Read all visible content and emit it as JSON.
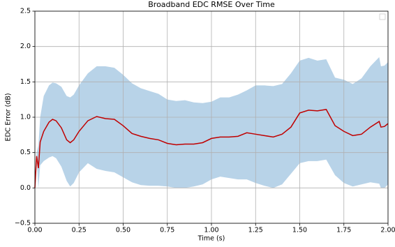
{
  "chart_data": {
    "type": "line",
    "title": "Broadband EDC RMSE Over Time",
    "x_label": "Time (s)",
    "y_label": "EDC Error  (dB)",
    "x": [
      0,
      0.01,
      0.02,
      0.03,
      0.05,
      0.08,
      0.1,
      0.12,
      0.15,
      0.18,
      0.2,
      0.22,
      0.25,
      0.3,
      0.35,
      0.4,
      0.45,
      0.5,
      0.55,
      0.6,
      0.65,
      0.7,
      0.75,
      0.8,
      0.85,
      0.9,
      0.95,
      1.0,
      1.05,
      1.1,
      1.15,
      1.2,
      1.25,
      1.3,
      1.35,
      1.4,
      1.45,
      1.5,
      1.55,
      1.6,
      1.65,
      1.7,
      1.75,
      1.8,
      1.85,
      1.9,
      1.95,
      1.96,
      1.98,
      2.0
    ],
    "series": [
      {
        "color": "#c00000",
        "values": [
          0,
          0.45,
          0.28,
          0.65,
          0.8,
          0.93,
          0.97,
          0.95,
          0.85,
          0.68,
          0.64,
          0.68,
          0.8,
          0.95,
          1.01,
          0.98,
          0.97,
          0.88,
          0.77,
          0.73,
          0.7,
          0.68,
          0.63,
          0.61,
          0.62,
          0.62,
          0.64,
          0.7,
          0.72,
          0.72,
          0.73,
          0.78,
          0.76,
          0.74,
          0.72,
          0.76,
          0.86,
          1.06,
          1.1,
          1.09,
          1.11,
          0.88,
          0.8,
          0.74,
          0.76,
          0.86,
          0.94,
          0.86,
          0.87,
          0.91
        ],
        "band_color": "#b8d3e8",
        "upper": [
          0,
          0.5,
          0.6,
          1.0,
          1.3,
          1.45,
          1.49,
          1.48,
          1.43,
          1.3,
          1.28,
          1.32,
          1.45,
          1.62,
          1.72,
          1.72,
          1.7,
          1.6,
          1.48,
          1.41,
          1.37,
          1.33,
          1.25,
          1.23,
          1.24,
          1.21,
          1.2,
          1.22,
          1.28,
          1.28,
          1.32,
          1.38,
          1.45,
          1.45,
          1.44,
          1.47,
          1.62,
          1.8,
          1.84,
          1.8,
          1.82,
          1.56,
          1.53,
          1.47,
          1.55,
          1.72,
          1.85,
          1.72,
          1.73,
          1.78
        ],
        "lower": [
          0,
          0.4,
          0,
          0.32,
          0.38,
          0.43,
          0.45,
          0.42,
          0.3,
          0.1,
          0.02,
          0.07,
          0.22,
          0.35,
          0.27,
          0.24,
          0.22,
          0.15,
          0.08,
          0.04,
          0.03,
          0.03,
          0.02,
          0,
          0,
          0.02,
          0.05,
          0.12,
          0.16,
          0.14,
          0.12,
          0.12,
          0.07,
          0.03,
          0,
          0.05,
          0.2,
          0.35,
          0.38,
          0.38,
          0.4,
          0.18,
          0.07,
          0.02,
          0.05,
          0.08,
          0.06,
          0,
          0,
          0.05
        ]
      }
    ],
    "xlim": [
      0,
      2.0
    ],
    "ylim": [
      -0.5,
      2.5
    ],
    "xticks": [
      {
        "value": 0,
        "label": "0.00"
      },
      {
        "value": 0.25,
        "label": "0.25"
      },
      {
        "value": 0.5,
        "label": "0.50"
      },
      {
        "value": 0.75,
        "label": "0.75"
      },
      {
        "value": 1,
        "label": "1.00"
      },
      {
        "value": 1.25,
        "label": "1.25"
      },
      {
        "value": 1.5,
        "label": "1.50"
      },
      {
        "value": 1.75,
        "label": "1.75"
      },
      {
        "value": 2,
        "label": "2.00"
      }
    ],
    "yticks": [
      {
        "value": -0.5,
        "label": "−0.5"
      },
      {
        "value": 0,
        "label": "0.0"
      },
      {
        "value": 0.5,
        "label": "0.5"
      },
      {
        "value": 1,
        "label": "1.0"
      },
      {
        "value": 1.5,
        "label": "1.5"
      },
      {
        "value": 2,
        "label": "2.0"
      },
      {
        "value": 2.5,
        "label": "2.5"
      }
    ],
    "grid": true
  }
}
